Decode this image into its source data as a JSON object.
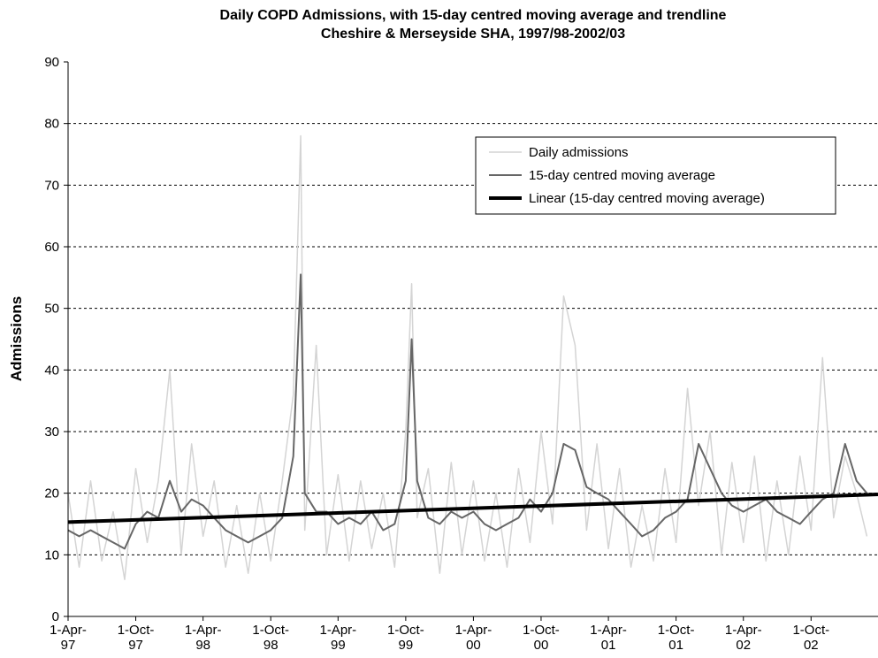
{
  "chart_data": {
    "type": "line",
    "title": "Daily COPD Admissions, with 15-day centred moving average and trendline",
    "subtitle": "Cheshire & Merseyside SHA, 1997/98-2002/03",
    "y_label": "Admissions",
    "ylim": [
      0,
      90
    ],
    "yticks": [
      0,
      10,
      20,
      30,
      40,
      50,
      60,
      70,
      80,
      90
    ],
    "xlim": [
      "1997-04-01",
      "2003-03-31"
    ],
    "xticks": [
      {
        "value": "1997-04-01",
        "label": "1-Apr-97"
      },
      {
        "value": "1997-10-01",
        "label": "1-Oct-97"
      },
      {
        "value": "1998-04-01",
        "label": "1-Apr-98"
      },
      {
        "value": "1998-10-01",
        "label": "1-Oct-98"
      },
      {
        "value": "1999-04-01",
        "label": "1-Apr-99"
      },
      {
        "value": "1999-10-01",
        "label": "1-Oct-99"
      },
      {
        "value": "2000-04-01",
        "label": "1-Apr-00"
      },
      {
        "value": "2000-10-01",
        "label": "1-Oct-00"
      },
      {
        "value": "2001-04-01",
        "label": "1-Apr-01"
      },
      {
        "value": "2001-10-01",
        "label": "1-Oct-01"
      },
      {
        "value": "2002-04-01",
        "label": "1-Apr-02"
      },
      {
        "value": "2002-10-01",
        "label": "1-Oct-02"
      }
    ],
    "grid": true,
    "legend": "upper right",
    "x": [
      "1997-04-01",
      "1997-05-01",
      "1997-06-01",
      "1997-07-01",
      "1997-08-01",
      "1997-09-01",
      "1997-10-01",
      "1997-11-01",
      "1997-12-01",
      "1998-01-01",
      "1998-02-01",
      "1998-03-01",
      "1998-04-01",
      "1998-05-01",
      "1998-06-01",
      "1998-07-01",
      "1998-08-01",
      "1998-09-01",
      "1998-10-01",
      "1998-11-01",
      "1998-12-01",
      "1998-12-21",
      "1999-01-01",
      "1999-02-01",
      "1999-03-01",
      "1999-04-01",
      "1999-05-01",
      "1999-06-01",
      "1999-07-01",
      "1999-08-01",
      "1999-09-01",
      "1999-10-01",
      "1999-10-17",
      "1999-11-01",
      "1999-12-01",
      "2000-01-01",
      "2000-02-01",
      "2000-03-01",
      "2000-04-01",
      "2000-05-01",
      "2000-06-01",
      "2000-07-01",
      "2000-08-01",
      "2000-09-01",
      "2000-10-01",
      "2000-11-01",
      "2000-12-01",
      "2001-01-01",
      "2001-02-01",
      "2001-03-01",
      "2001-04-01",
      "2001-05-01",
      "2001-06-01",
      "2001-07-01",
      "2001-08-01",
      "2001-09-01",
      "2001-10-01",
      "2001-11-01",
      "2001-12-01",
      "2002-01-01",
      "2002-02-01",
      "2002-03-01",
      "2002-04-01",
      "2002-05-01",
      "2002-06-01",
      "2002-07-01",
      "2002-08-01",
      "2002-09-01",
      "2002-10-01",
      "2002-11-01",
      "2002-12-01",
      "2003-01-01",
      "2003-02-01",
      "2003-03-01"
    ],
    "series": [
      {
        "name": "Daily admissions",
        "color": "#d4d4d4",
        "width": 1.5,
        "values": [
          20,
          8,
          22,
          9,
          17,
          6,
          24,
          12,
          22,
          40,
          10,
          28,
          13,
          22,
          8,
          18,
          7,
          20,
          9,
          22,
          36,
          78,
          14,
          44,
          10,
          23,
          9,
          22,
          11,
          20,
          8,
          30,
          54,
          16,
          24,
          7,
          25,
          10,
          22,
          9,
          20,
          8,
          24,
          12,
          30,
          15,
          52,
          44,
          14,
          28,
          11,
          24,
          8,
          18,
          9,
          24,
          12,
          37,
          18,
          30,
          10,
          25,
          12,
          26,
          9,
          22,
          10,
          26,
          14,
          42,
          16,
          26,
          20,
          13
        ]
      },
      {
        "name": "15-day centred moving average",
        "color": "#666666",
        "width": 2,
        "values": [
          14,
          13,
          14,
          13,
          12,
          11,
          15,
          17,
          16,
          22,
          17,
          19,
          18,
          16,
          14,
          13,
          12,
          13,
          14,
          16,
          26,
          55.5,
          20,
          17,
          17,
          15,
          16,
          15,
          17,
          14,
          15,
          22,
          45,
          22,
          16,
          15,
          17,
          16,
          17,
          15,
          14,
          15,
          16,
          19,
          17,
          20,
          28,
          27,
          21,
          20,
          19,
          17,
          15,
          13,
          14,
          16,
          17,
          19,
          28,
          24,
          20,
          18,
          17,
          18,
          19,
          17,
          16,
          15,
          17,
          19,
          20,
          28,
          22,
          20
        ]
      },
      {
        "name": "Linear (15-day centred moving average)",
        "color": "#000000",
        "width": 4,
        "x": [
          "1997-04-01",
          "2003-03-31"
        ],
        "values": [
          15.3,
          19.8
        ]
      }
    ]
  }
}
